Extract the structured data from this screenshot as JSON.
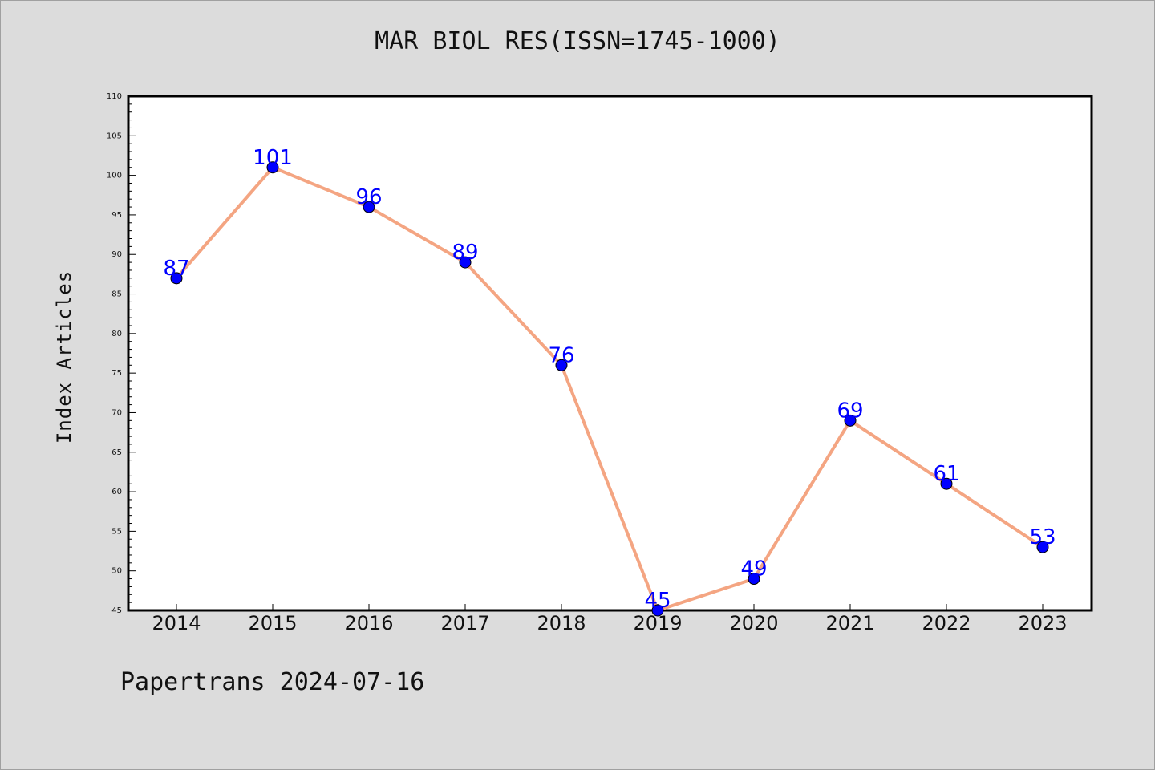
{
  "title": "MAR BIOL RES(ISSN=1745-1000)",
  "footer": "Papertrans 2024-07-16",
  "colors": {
    "background": "#dcdcdc",
    "plot_area": "#ffffff",
    "line": "#f4a582",
    "marker": "#0000ff",
    "data_label": "#0000ff"
  },
  "chart_data": {
    "type": "line",
    "title": "MAR BIOL RES(ISSN=1745-1000)",
    "xlabel": "",
    "ylabel": "Index Articles",
    "categories": [
      "2014",
      "2015",
      "2016",
      "2017",
      "2018",
      "2019",
      "2020",
      "2021",
      "2022",
      "2023"
    ],
    "series": [
      {
        "values": [
          87,
          101,
          96,
          89,
          76,
          45,
          49,
          69,
          61,
          53
        ]
      }
    ],
    "ylim": [
      45,
      110
    ],
    "yticks": [
      45,
      50,
      55,
      60,
      65,
      70,
      75,
      80,
      85,
      90,
      95,
      100,
      105,
      110
    ],
    "grid": false,
    "legend": "none",
    "data_labels": true
  }
}
